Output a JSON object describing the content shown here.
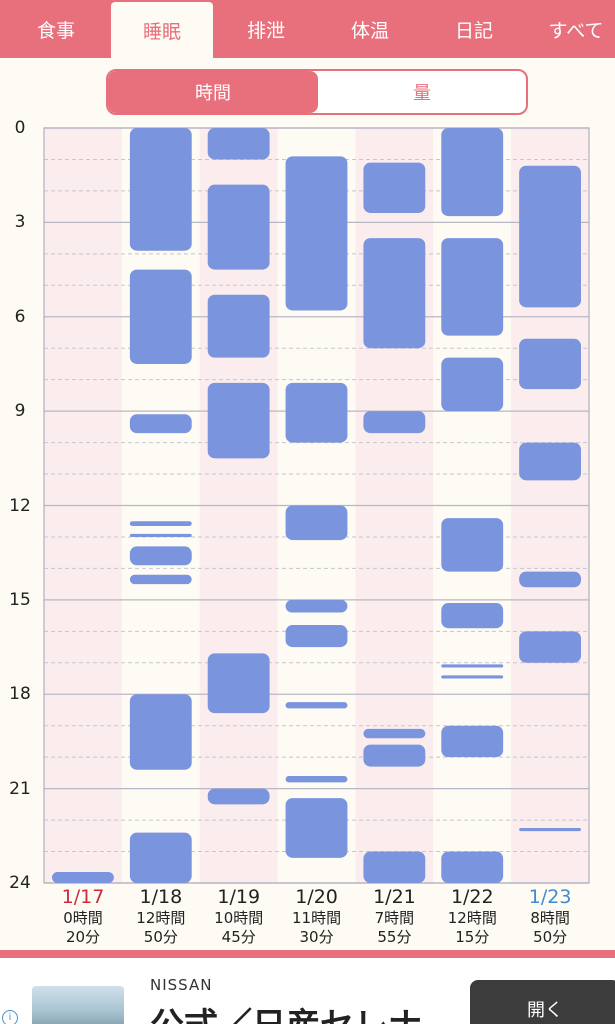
{
  "tabs": [
    {
      "label": "食事",
      "active": false
    },
    {
      "label": "睡眠",
      "active": true
    },
    {
      "label": "排泄",
      "active": false
    },
    {
      "label": "体温",
      "active": false
    },
    {
      "label": "日記",
      "active": false
    },
    {
      "label": "すべて",
      "active": false
    }
  ],
  "segment": {
    "time_label": "時間",
    "amount_label": "量",
    "selected": "時間"
  },
  "colors": {
    "accent": "#e8707c",
    "sleep_block": "#7a94de",
    "column_pink": "#fbeded",
    "column_cream": "#fdfbf3",
    "sunday": "#cc2b3c",
    "saturday": "#3f8bd0"
  },
  "chart_data": {
    "type": "timeline",
    "y_axis": {
      "ticks": [
        "0",
        "3",
        "6",
        "9",
        "12",
        "15",
        "18",
        "21",
        "24"
      ],
      "ylim": [
        0,
        24
      ],
      "unit": "hour"
    },
    "days": [
      {
        "date": "1/17",
        "total_hours": "0時間",
        "total_minutes": "20分",
        "date_color": "sunday",
        "sleep": [
          [
            23.65,
            24.0
          ]
        ]
      },
      {
        "date": "1/18",
        "total_hours": "12時間",
        "total_minutes": "50分",
        "date_color": "normal",
        "sleep": [
          [
            0,
            3.9
          ],
          [
            4.5,
            7.5
          ],
          [
            9.1,
            9.7
          ],
          [
            12.5,
            12.65
          ],
          [
            12.9,
            13.0
          ],
          [
            13.3,
            13.9
          ],
          [
            14.2,
            14.5
          ],
          [
            18.0,
            20.4
          ],
          [
            22.4,
            24.0
          ]
        ]
      },
      {
        "date": "1/19",
        "total_hours": "10時間",
        "total_minutes": "45分",
        "date_color": "normal",
        "sleep": [
          [
            0,
            1.0
          ],
          [
            1.8,
            4.5
          ],
          [
            5.3,
            7.3
          ],
          [
            8.1,
            10.5
          ],
          [
            16.7,
            18.6
          ],
          [
            21.0,
            21.5
          ]
        ]
      },
      {
        "date": "1/20",
        "total_hours": "11時間",
        "total_minutes": "30分",
        "date_color": "normal",
        "sleep": [
          [
            0.9,
            5.8
          ],
          [
            8.1,
            10.0
          ],
          [
            12.0,
            13.1
          ],
          [
            15.0,
            15.4
          ],
          [
            15.8,
            16.5
          ],
          [
            18.25,
            18.45
          ],
          [
            20.6,
            20.8
          ],
          [
            21.3,
            23.2
          ]
        ]
      },
      {
        "date": "1/21",
        "total_hours": "7時間",
        "total_minutes": "55分",
        "date_color": "normal",
        "sleep": [
          [
            1.1,
            2.7
          ],
          [
            3.5,
            7.0
          ],
          [
            9.0,
            9.7
          ],
          [
            19.1,
            19.4
          ],
          [
            19.6,
            20.3
          ],
          [
            23.0,
            24.0
          ]
        ]
      },
      {
        "date": "1/22",
        "total_hours": "12時間",
        "total_minutes": "15分",
        "date_color": "normal",
        "sleep": [
          [
            0,
            2.8
          ],
          [
            3.5,
            6.6
          ],
          [
            7.3,
            9.0
          ],
          [
            12.4,
            14.1
          ],
          [
            15.1,
            15.9
          ],
          [
            17.05,
            17.15
          ],
          [
            17.4,
            17.5
          ],
          [
            19.0,
            20.0
          ],
          [
            23.0,
            24.0
          ]
        ]
      },
      {
        "date": "1/23",
        "total_hours": "8時間",
        "total_minutes": "50分",
        "date_color": "saturday",
        "sleep": [
          [
            1.2,
            5.7
          ],
          [
            6.7,
            8.3
          ],
          [
            10.0,
            11.2
          ],
          [
            14.1,
            14.6
          ],
          [
            16.0,
            17.0
          ],
          [
            22.25,
            22.35
          ]
        ]
      }
    ]
  },
  "ad": {
    "info_icon": "info-icon",
    "brand": "NISSAN",
    "title": "公式／日産セレナ",
    "open_label": "開く"
  }
}
